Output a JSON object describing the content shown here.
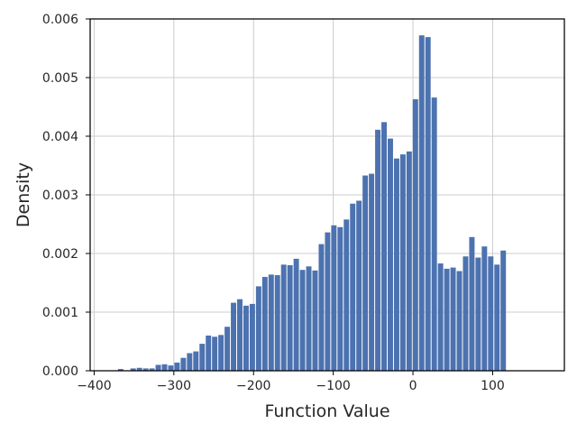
{
  "chart_data": {
    "type": "bar",
    "title": "",
    "xlabel": "Function Value",
    "ylabel": "Density",
    "xlim": [
      -405,
      190
    ],
    "ylim": [
      0,
      0.006
    ],
    "xticks": [
      -400,
      -300,
      -200,
      -100,
      0,
      100
    ],
    "xtick_labels": [
      "−400",
      "−300",
      "−200",
      "−100",
      "0",
      "100"
    ],
    "yticks": [
      0,
      0.001,
      0.002,
      0.003,
      0.004,
      0.005,
      0.006
    ],
    "ytick_labels": [
      "0.000",
      "0.001",
      "0.002",
      "0.003",
      "0.004",
      "0.005",
      "0.006"
    ],
    "grid": true,
    "bar_color": "#4c72b0",
    "bin_start": -378,
    "bin_width": 7.87,
    "values": [
      0.0,
      3e-05,
      0.0,
      4e-05,
      5e-05,
      4e-05,
      4e-05,
      0.0001,
      0.00011,
      9e-05,
      0.00014,
      0.00022,
      0.0003,
      0.00033,
      0.00046,
      0.0006,
      0.00058,
      0.00061,
      0.00075,
      0.00116,
      0.00122,
      0.00111,
      0.00114,
      0.00144,
      0.0016,
      0.00164,
      0.00163,
      0.00181,
      0.0018,
      0.00191,
      0.00172,
      0.00178,
      0.00171,
      0.00216,
      0.00236,
      0.00248,
      0.00245,
      0.00258,
      0.00285,
      0.0029,
      0.00333,
      0.00336,
      0.00411,
      0.00424,
      0.00396,
      0.00362,
      0.00369,
      0.00374,
      0.00463,
      0.00572,
      0.00569,
      0.00466,
      0.00183,
      0.00174,
      0.00176,
      0.0017,
      0.00195,
      0.00228,
      0.00193,
      0.00212,
      0.00195,
      0.00181,
      0.00205
    ]
  }
}
